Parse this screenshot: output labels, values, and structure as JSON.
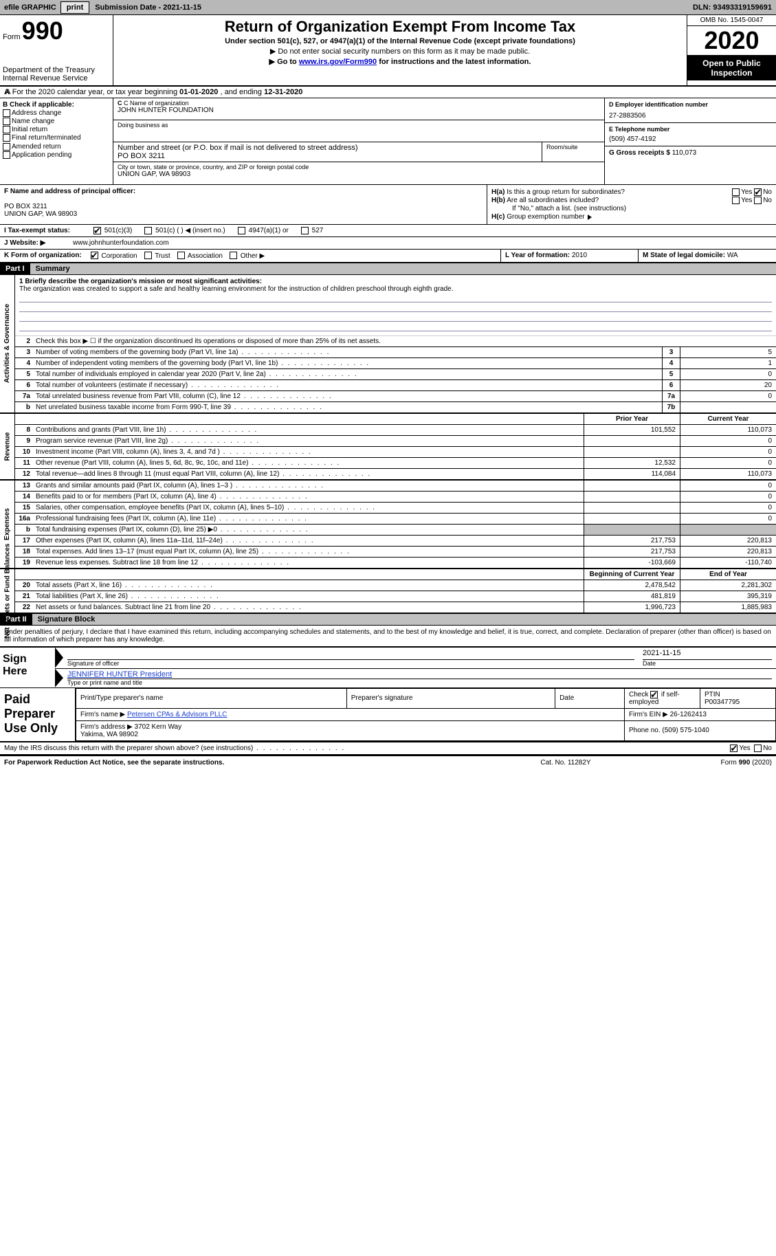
{
  "topbar": {
    "efile_label": "efile GRAPHIC",
    "print_btn": "print",
    "submission_label": "Submission Date -",
    "submission_date": "2021-11-15",
    "dln_label": "DLN:",
    "dln": "93493319159691"
  },
  "header": {
    "form_word": "Form",
    "form_number": "990",
    "dept": "Department of the Treasury\nInternal Revenue Service",
    "title": "Return of Organization Exempt From Income Tax",
    "subtitle": "Under section 501(c), 527, or 4947(a)(1) of the Internal Revenue Code (except private foundations)",
    "note1": "▶ Do not enter social security numbers on this form as it may be made public.",
    "note2_pre": "▶ Go to ",
    "note2_link": "www.irs.gov/Form990",
    "note2_post": " for instructions and the latest information.",
    "omb": "OMB No. 1545-0047",
    "year": "2020",
    "open": "Open to Public Inspection"
  },
  "row_a": {
    "text_pre": "A For the 2020 calendar year, or tax year beginning ",
    "begin": "01-01-2020",
    "mid": " , and ending ",
    "end": "12-31-2020"
  },
  "col_b": {
    "header": "B Check if applicable:",
    "opts": [
      "Address change",
      "Name change",
      "Initial return",
      "Final return/terminated",
      "Amended return",
      "Application pending"
    ]
  },
  "col_c": {
    "name_label": "C Name of organization",
    "name": "JOHN HUNTER FOUNDATION",
    "dba_label": "Doing business as",
    "dba": "",
    "street_label": "Number and street (or P.O. box if mail is not delivered to street address)",
    "room_label": "Room/suite",
    "street": "PO BOX 3211",
    "city_label": "City or town, state or province, country, and ZIP or foreign postal code",
    "city": "UNION GAP, WA  98903"
  },
  "col_d": {
    "ein_label": "D Employer identification number",
    "ein": "27-2883506",
    "phone_label": "E Telephone number",
    "phone": "(509) 457-4192",
    "gross_label": "G Gross receipts $",
    "gross": "110,073"
  },
  "section_f": {
    "label": "F Name and address of principal officer:",
    "addr1": "PO BOX 3211",
    "addr2": "UNION GAP, WA  98903"
  },
  "section_h": {
    "a_label": "H(a)  Is this a group return for subordinates?",
    "b_label": "H(b)  Are all subordinates included?",
    "b_note": "If \"No,\" attach a list. (see instructions)",
    "c_label": "H(c)  Group exemption number ▶",
    "yes": "Yes",
    "no": "No",
    "a_checked": "no"
  },
  "row_i": {
    "label": "I  Tax-exempt status:",
    "opts": [
      "501(c)(3)",
      "501(c) (  ) ◀ (insert no.)",
      "4947(a)(1) or",
      "527"
    ],
    "checked_idx": 0
  },
  "row_j": {
    "label": "J  Website: ▶",
    "value": "www.johnhunterfoundation.com"
  },
  "row_klm": {
    "k_label": "K Form of organization:",
    "k_opts": [
      "Corporation",
      "Trust",
      "Association",
      "Other ▶"
    ],
    "k_checked_idx": 0,
    "l_label": "L Year of formation:",
    "l_value": "2010",
    "m_label": "M State of legal domicile:",
    "m_value": "WA"
  },
  "part1": {
    "num": "Part I",
    "title": "Summary",
    "briefly_label": "1  Briefly describe the organization's mission or most significant activities:",
    "briefly": "The organization was created to support a safe and healthy learning environment for the instruction of children preschool through eighth grade.",
    "line2": "Check this box ▶ ☐  if the organization discontinued its operations or disposed of more than 25% of its net assets.",
    "vtabs": [
      "Activities & Governance",
      "Revenue",
      "Expenses",
      "Net Assets or Fund Balances"
    ],
    "col_prior": "Prior Year",
    "col_current": "Current Year",
    "col_begin": "Beginning of Current Year",
    "col_end": "End of Year",
    "gov_rows": [
      {
        "n": "3",
        "d": "Number of voting members of the governing body (Part VI, line 1a)",
        "box": "3",
        "v": "5"
      },
      {
        "n": "4",
        "d": "Number of independent voting members of the governing body (Part VI, line 1b)",
        "box": "4",
        "v": "1"
      },
      {
        "n": "5",
        "d": "Total number of individuals employed in calendar year 2020 (Part V, line 2a)",
        "box": "5",
        "v": "0"
      },
      {
        "n": "6",
        "d": "Total number of volunteers (estimate if necessary)",
        "box": "6",
        "v": "20"
      },
      {
        "n": "7a",
        "d": "Total unrelated business revenue from Part VIII, column (C), line 12",
        "box": "7a",
        "v": "0"
      },
      {
        "n": "b",
        "d": "Net unrelated business taxable income from Form 990-T, line 39",
        "box": "7b",
        "v": ""
      }
    ],
    "rev_rows": [
      {
        "n": "8",
        "d": "Contributions and grants (Part VIII, line 1h)",
        "p": "101,552",
        "c": "110,073"
      },
      {
        "n": "9",
        "d": "Program service revenue (Part VIII, line 2g)",
        "p": "",
        "c": "0"
      },
      {
        "n": "10",
        "d": "Investment income (Part VIII, column (A), lines 3, 4, and 7d )",
        "p": "",
        "c": "0"
      },
      {
        "n": "11",
        "d": "Other revenue (Part VIII, column (A), lines 5, 6d, 8c, 9c, 10c, and 11e)",
        "p": "12,532",
        "c": "0"
      },
      {
        "n": "12",
        "d": "Total revenue—add lines 8 through 11 (must equal Part VIII, column (A), line 12)",
        "p": "114,084",
        "c": "110,073"
      }
    ],
    "exp_rows": [
      {
        "n": "13",
        "d": "Grants and similar amounts paid (Part IX, column (A), lines 1–3 )",
        "p": "",
        "c": "0"
      },
      {
        "n": "14",
        "d": "Benefits paid to or for members (Part IX, column (A), line 4)",
        "p": "",
        "c": "0"
      },
      {
        "n": "15",
        "d": "Salaries, other compensation, employee benefits (Part IX, column (A), lines 5–10)",
        "p": "",
        "c": "0"
      },
      {
        "n": "16a",
        "d": "Professional fundraising fees (Part IX, column (A), line 11e)",
        "p": "",
        "c": "0"
      },
      {
        "n": "b",
        "d": "Total fundraising expenses (Part IX, column (D), line 25) ▶0",
        "p": "SHADE",
        "c": "SHADE"
      },
      {
        "n": "17",
        "d": "Other expenses (Part IX, column (A), lines 11a–11d, 11f–24e)",
        "p": "217,753",
        "c": "220,813"
      },
      {
        "n": "18",
        "d": "Total expenses. Add lines 13–17 (must equal Part IX, column (A), line 25)",
        "p": "217,753",
        "c": "220,813"
      },
      {
        "n": "19",
        "d": "Revenue less expenses. Subtract line 18 from line 12",
        "p": "-103,669",
        "c": "-110,740"
      }
    ],
    "net_rows": [
      {
        "n": "20",
        "d": "Total assets (Part X, line 16)",
        "p": "2,478,542",
        "c": "2,281,302"
      },
      {
        "n": "21",
        "d": "Total liabilities (Part X, line 26)",
        "p": "481,819",
        "c": "395,319"
      },
      {
        "n": "22",
        "d": "Net assets or fund balances. Subtract line 21 from line 20",
        "p": "1,996,723",
        "c": "1,885,983"
      }
    ]
  },
  "part2": {
    "num": "Part II",
    "title": "Signature Block",
    "penalties": "Under penalties of perjury, I declare that I have examined this return, including accompanying schedules and statements, and to the best of my knowledge and belief, it is true, correct, and complete. Declaration of preparer (other than officer) is based on all information of which preparer has any knowledge.",
    "sign_here": "Sign Here",
    "sig_officer": "Signature of officer",
    "sig_date": "Date",
    "sig_date_val": "2021-11-15",
    "officer_name": "JENNIFER HUNTER President",
    "type_name": "Type or print name and title"
  },
  "paid": {
    "label": "Paid Preparer Use Only",
    "hdrs": [
      "Print/Type preparer's name",
      "Preparer's signature",
      "Date",
      "Check ☑ if self-employed",
      "PTIN"
    ],
    "ptin": "P00347795",
    "firm_name_lbl": "Firm's name ▶",
    "firm_name": "Petersen CPAs & Advisors PLLC",
    "firm_ein_lbl": "Firm's EIN ▶",
    "firm_ein": "26-1262413",
    "firm_addr_lbl": "Firm's address ▶",
    "firm_addr": "3702 Kern Way\nYakima, WA  98902",
    "phone_lbl": "Phone no.",
    "phone": "(509) 575-1040"
  },
  "bottom": {
    "discuss": "May the IRS discuss this return with the preparer shown above? (see instructions)",
    "yes": "Yes",
    "no": "No",
    "pra": "For Paperwork Reduction Act Notice, see the separate instructions.",
    "cat": "Cat. No. 11282Y",
    "form": "Form 990 (2020)"
  },
  "colors": {
    "topbar_bg": "#b8b8b8",
    "shade": "#c0c0c0",
    "link": "#1a3fcf"
  }
}
